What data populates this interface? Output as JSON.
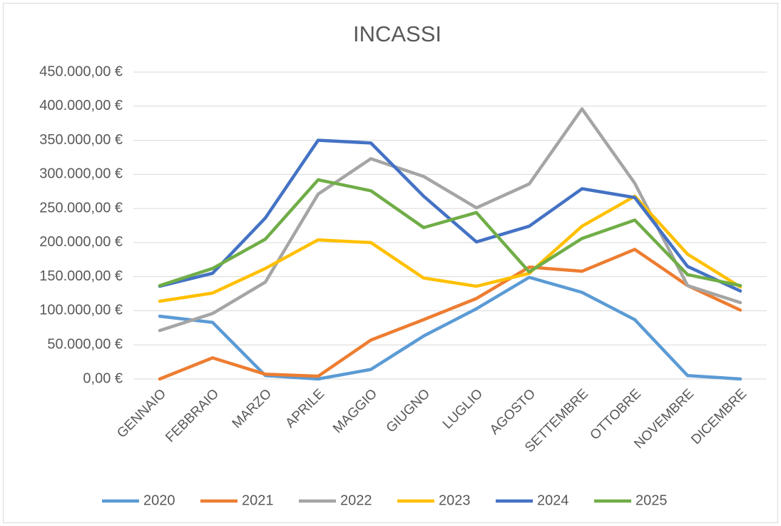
{
  "chart_data": {
    "type": "line",
    "title": "INCASSI",
    "categories": [
      "GENNAIO",
      "FEBBRAIO",
      "MARZO",
      "APRILE",
      "MAGGIO",
      "GIUGNO",
      "LUGLIO",
      "AGOSTO",
      "SETTEMBRE",
      "OTTOBRE",
      "NOVEMBRE",
      "DICEMBRE"
    ],
    "series": [
      {
        "name": "2020",
        "color": "#5b9bd5",
        "values": [
          92000,
          83000,
          5000,
          0,
          14000,
          63000,
          103000,
          149000,
          127000,
          87000,
          5000,
          0
        ]
      },
      {
        "name": "2021",
        "color": "#ed7d31",
        "values": [
          0,
          31000,
          7000,
          4000,
          57000,
          87000,
          118000,
          164000,
          158000,
          190000,
          137000,
          101000
        ]
      },
      {
        "name": "2022",
        "color": "#a5a5a5",
        "values": [
          71000,
          96000,
          142000,
          271000,
          323000,
          297000,
          251000,
          286000,
          396000,
          287000,
          137000,
          112000
        ]
      },
      {
        "name": "2023",
        "color": "#ffc000",
        "values": [
          114000,
          126000,
          162000,
          204000,
          200000,
          148000,
          136000,
          155000,
          224000,
          268000,
          183000,
          135000
        ]
      },
      {
        "name": "2024",
        "color": "#4472c4",
        "values": [
          136000,
          155000,
          236000,
          350000,
          346000,
          268000,
          201000,
          224000,
          279000,
          266000,
          165000,
          129000
        ]
      },
      {
        "name": "2025",
        "color": "#70ad47",
        "values": [
          137000,
          162000,
          205000,
          292000,
          276000,
          222000,
          244000,
          157000,
          206000,
          233000,
          153000,
          137000
        ]
      }
    ],
    "ylim": [
      0,
      450000
    ],
    "yticks": [
      {
        "value": 0,
        "label": "0,00 €"
      },
      {
        "value": 50000,
        "label": "50.000,00 €"
      },
      {
        "value": 100000,
        "label": "100.000,00 €"
      },
      {
        "value": 150000,
        "label": "150.000,00 €"
      },
      {
        "value": 200000,
        "label": "200.000,00 €"
      },
      {
        "value": 250000,
        "label": "250.000,00 €"
      },
      {
        "value": 300000,
        "label": "300.000,00 €"
      },
      {
        "value": 350000,
        "label": "350.000,00 €"
      },
      {
        "value": 400000,
        "label": "400.000,00 €"
      },
      {
        "value": 450000,
        "label": "450.000,00 €"
      }
    ],
    "grid": true,
    "legend": "bottom"
  }
}
